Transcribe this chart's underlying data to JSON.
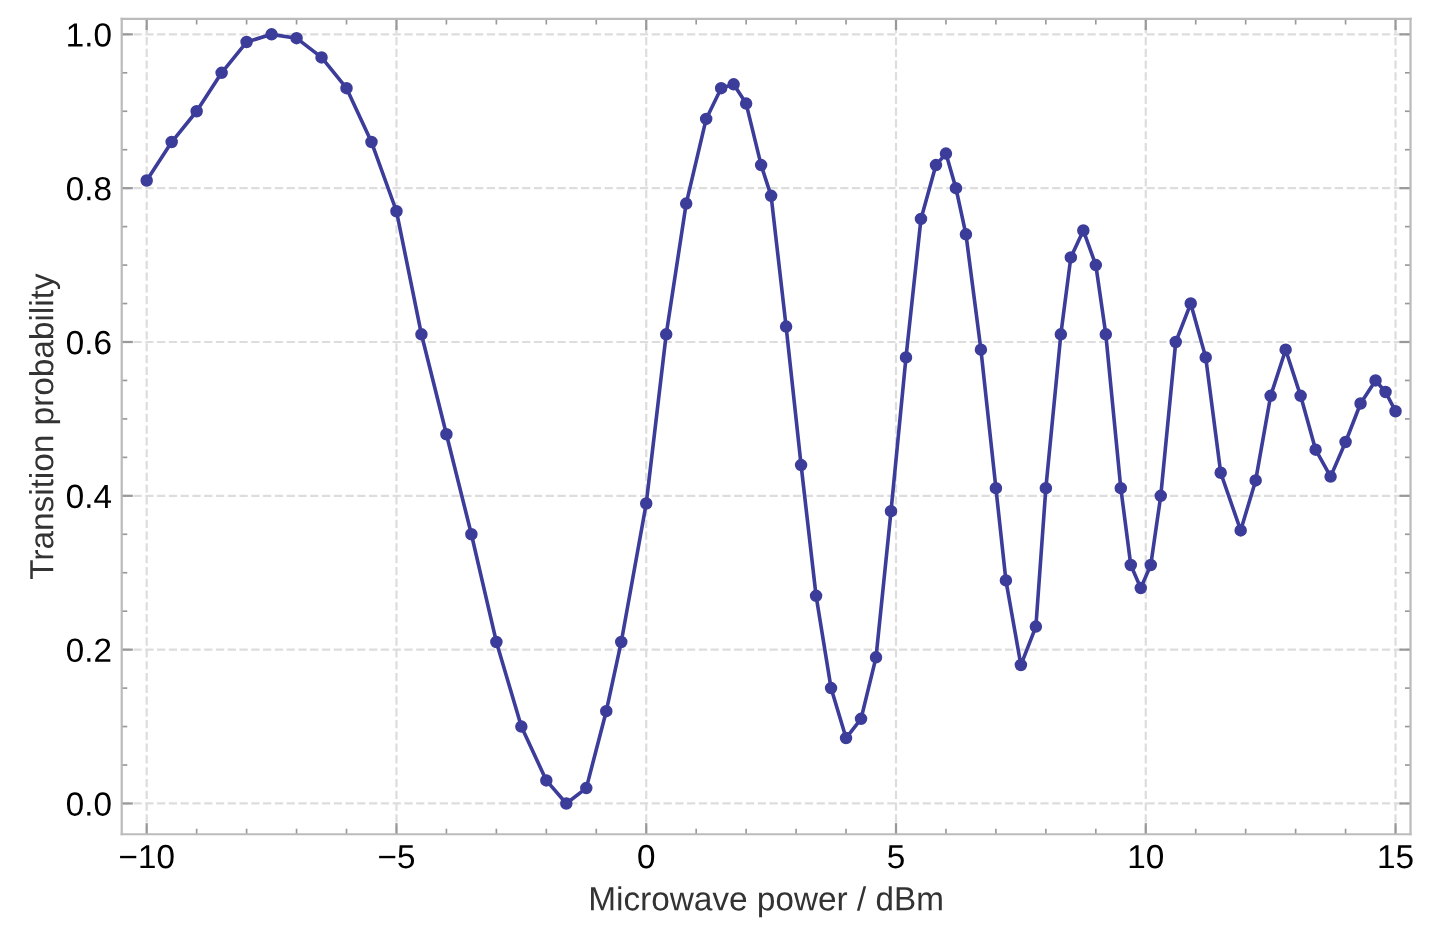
{
  "chart_data": {
    "type": "line",
    "xlabel": "Microwave power / dBm",
    "ylabel": "Transition probability",
    "x": [
      -10,
      -9.5,
      -9,
      -8.5,
      -8,
      -7.5,
      -7,
      -6.5,
      -6,
      -5.5,
      -5,
      -4.5,
      -4,
      -3.5,
      -3,
      -2.5,
      -2,
      -1.6,
      -1.2,
      -0.8,
      -0.5,
      0,
      0.4,
      0.8,
      1.2,
      1.5,
      1.75,
      2.0,
      2.3,
      2.5,
      2.8,
      3.1,
      3.4,
      3.7,
      4.0,
      4.3,
      4.6,
      4.9,
      5.2,
      5.5,
      5.8,
      6.0,
      6.2,
      6.4,
      6.7,
      7.0,
      7.2,
      7.5,
      7.8,
      8.0,
      8.3,
      8.5,
      8.75,
      9.0,
      9.2,
      9.5,
      9.7,
      9.9,
      10.1,
      10.3,
      10.6,
      10.9,
      11.2,
      11.5,
      11.9,
      12.2,
      12.5,
      12.8,
      13.1,
      13.4,
      13.7,
      14.0,
      14.3,
      14.6,
      14.8,
      15.0
    ],
    "series": [
      {
        "color": "#3c3c9a",
        "values": [
          0.81,
          0.86,
          0.9,
          0.95,
          0.99,
          1.0,
          0.995,
          0.97,
          0.93,
          0.86,
          0.77,
          0.61,
          0.48,
          0.35,
          0.21,
          0.1,
          0.03,
          0.0,
          0.02,
          0.12,
          0.21,
          0.39,
          0.61,
          0.78,
          0.89,
          0.93,
          0.935,
          0.91,
          0.83,
          0.79,
          0.62,
          0.44,
          0.27,
          0.15,
          0.085,
          0.11,
          0.19,
          0.38,
          0.58,
          0.76,
          0.83,
          0.845,
          0.8,
          0.74,
          0.59,
          0.41,
          0.29,
          0.18,
          0.23,
          0.41,
          0.61,
          0.71,
          0.745,
          0.7,
          0.61,
          0.41,
          0.31,
          0.28,
          0.31,
          0.4,
          0.6,
          0.65,
          0.58,
          0.43,
          0.355,
          0.42,
          0.53,
          0.59,
          0.53,
          0.46,
          0.425,
          0.47,
          0.52,
          0.55,
          0.535,
          0.51
        ]
      }
    ],
    "marker": "circle",
    "line_style": "solid",
    "grid": true,
    "xlim": [
      -10.5,
      15.3
    ],
    "xticks": [
      -10,
      -5,
      0,
      5,
      10,
      15
    ],
    "ylim": [
      -0.04,
      1.02
    ],
    "yticks": [
      {
        "value": 0,
        "label": "0.0"
      },
      {
        "value": 0.2,
        "label": "0.2"
      },
      {
        "value": 0.4,
        "label": "0.4"
      },
      {
        "value": 0.6,
        "label": "0.6"
      },
      {
        "value": 0.8,
        "label": "0.8"
      },
      {
        "value": 1.0,
        "label": "1.0"
      }
    ]
  }
}
